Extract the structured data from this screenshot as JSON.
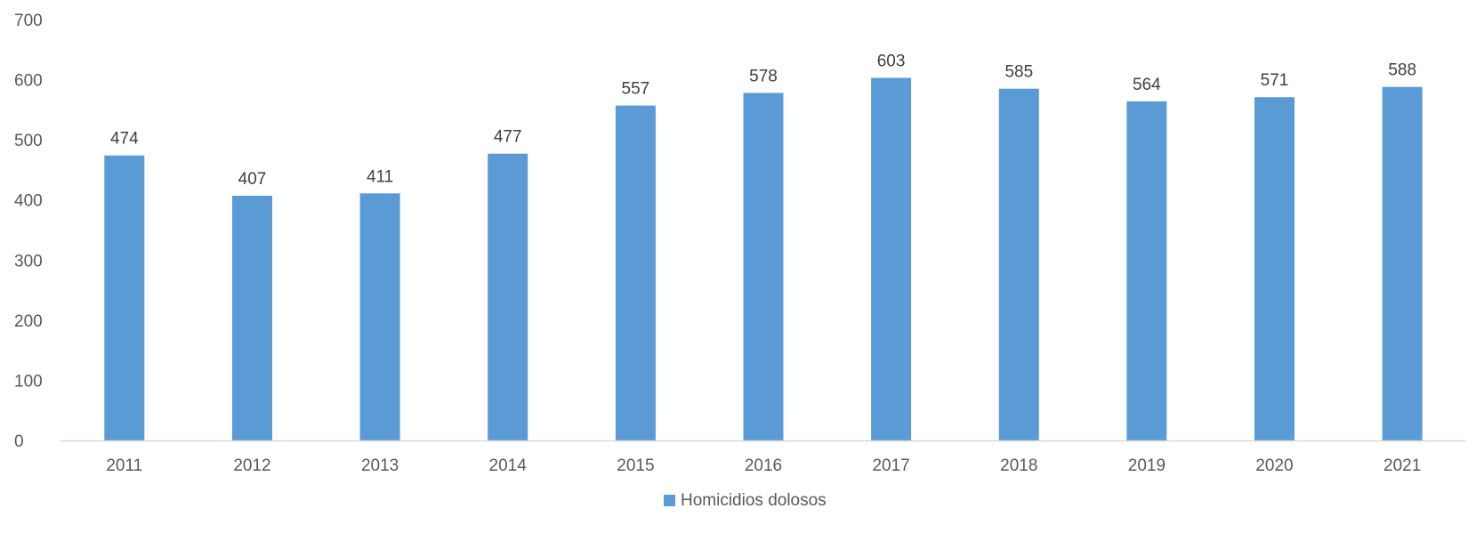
{
  "chart_data": {
    "type": "bar",
    "categories": [
      "2011",
      "2012",
      "2013",
      "2014",
      "2015",
      "2016",
      "2017",
      "2018",
      "2019",
      "2020",
      "2021"
    ],
    "series": [
      {
        "name": "Homicidios dolosos",
        "values": [
          474,
          407,
          411,
          477,
          557,
          578,
          603,
          585,
          564,
          571,
          588
        ],
        "color": "#5B9BD5"
      }
    ],
    "title": "",
    "xlabel": "",
    "ylabel": "",
    "ylim": [
      0,
      700
    ],
    "yticks": [
      0,
      100,
      200,
      300,
      400,
      500,
      600,
      700
    ],
    "grid": false,
    "legend_position": "bottom",
    "data_labels": true
  }
}
